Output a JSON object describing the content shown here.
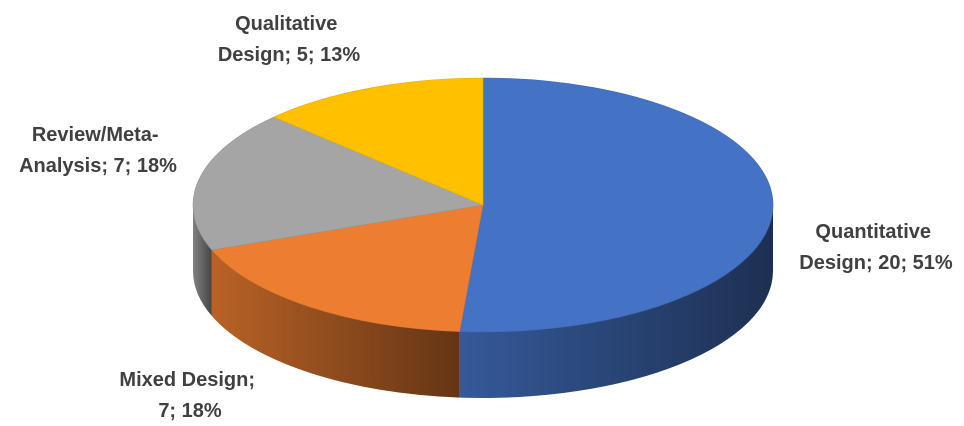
{
  "chart_data": {
    "type": "pie",
    "style": "3d",
    "title": "",
    "categories": [
      "Quantitative Design",
      "Mixed Design",
      "Review/Meta-Analysis",
      "Qualitative Design"
    ],
    "values": [
      20,
      7,
      7,
      5
    ],
    "percentages": [
      "51%",
      "18%",
      "18%",
      "13%"
    ],
    "colors": [
      "#4472C4",
      "#ED7D31",
      "#A5A5A5",
      "#FFC000"
    ],
    "legend": "none",
    "labels": [
      {
        "lines": [
          "Quantitative",
          "Design; 20; 51%"
        ]
      },
      {
        "lines": [
          "Mixed Design;",
          "7; 18%"
        ]
      },
      {
        "lines": [
          "Review/Meta-",
          "Analysis; 7; 18%"
        ]
      },
      {
        "lines": [
          "Qualitative",
          "Design; 5; 13%"
        ]
      }
    ]
  }
}
